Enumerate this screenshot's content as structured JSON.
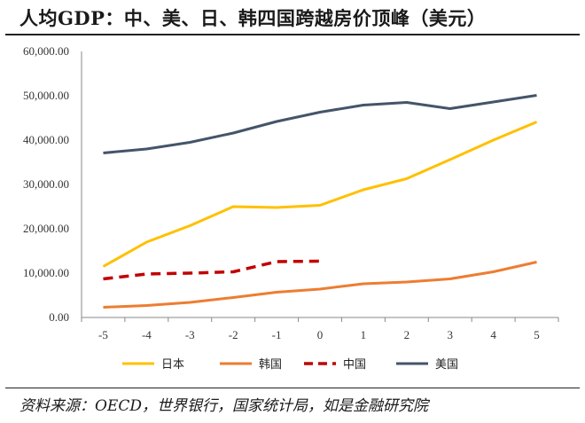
{
  "header": {
    "title": "人均GDP：中、美、日、韩四国跨越房价顶峰（美元）"
  },
  "footer": {
    "source": "资料来源：OECD，世界银行，国家统计局，如是金融研究院"
  },
  "chart_data": {
    "type": "line",
    "x": [
      -5,
      -4,
      -3,
      -2,
      -1,
      0,
      1,
      2,
      3,
      4,
      5
    ],
    "x_tick_labels": [
      "-5",
      "-4",
      "-3",
      "-2",
      "-1",
      "0",
      "1",
      "2",
      "3",
      "4",
      "5"
    ],
    "y_tick_labels": [
      "0.00",
      "10,000.00",
      "20,000.00",
      "30,000.00",
      "40,000.00",
      "50,000.00",
      "60,000.00"
    ],
    "ylim": [
      0,
      60000
    ],
    "grid": false,
    "legend_position": "bottom",
    "series": [
      {
        "name": "日本",
        "color": "#FFC000",
        "dash": "solid",
        "values": [
          11500,
          17000,
          20700,
          25000,
          24800,
          25300,
          28800,
          31300,
          35600,
          40000,
          44100
        ]
      },
      {
        "name": "韩国",
        "color": "#ED7D31",
        "dash": "solid",
        "values": [
          2300,
          2700,
          3400,
          4500,
          5700,
          6400,
          7600,
          8000,
          8700,
          10300,
          12500
        ]
      },
      {
        "name": "中国",
        "color": "#C00000",
        "dash": "dashed",
        "values": [
          8700,
          9800,
          10000,
          10300,
          12600,
          12700,
          null,
          null,
          null,
          null,
          null
        ]
      },
      {
        "name": "美国",
        "color": "#44546A",
        "dash": "solid",
        "values": [
          37100,
          38000,
          39500,
          41600,
          44200,
          46300,
          47900,
          48500,
          47100,
          48600,
          50100
        ]
      }
    ]
  }
}
